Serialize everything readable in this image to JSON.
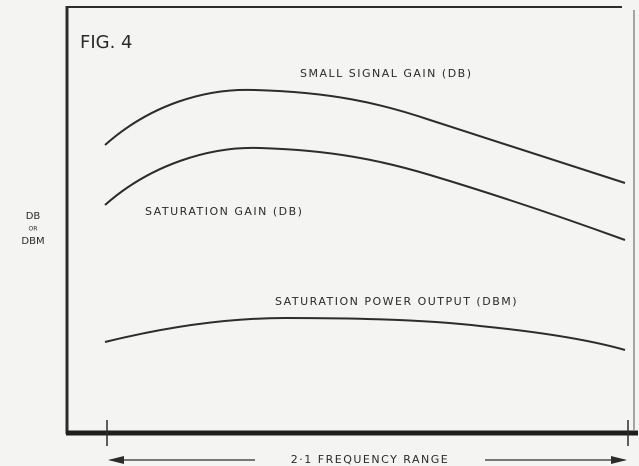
{
  "figure": {
    "title": "FIG. 4",
    "curves": [
      {
        "label": "SMALL SIGNAL GAIN (DB)"
      },
      {
        "label": "SATURATION GAIN (DB)"
      },
      {
        "label": "SATURATION POWER OUTPUT (DBM)"
      }
    ],
    "y_axis_label": [
      "DB",
      "OR",
      "DBM"
    ],
    "x_axis_label": "2·1 FREQUENCY RANGE"
  }
}
